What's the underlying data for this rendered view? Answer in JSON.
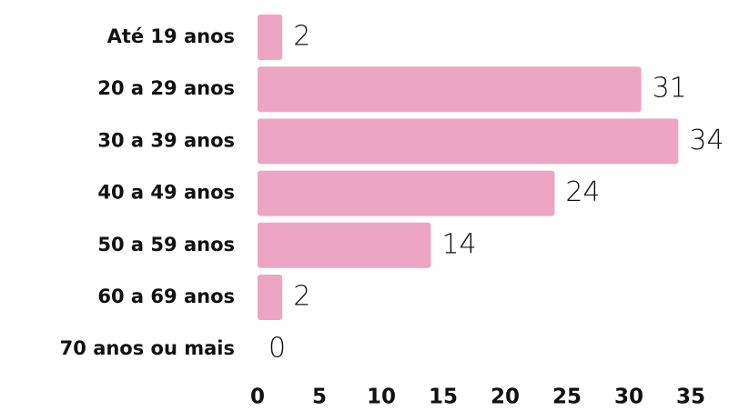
{
  "chart_data": {
    "type": "bar",
    "orientation": "horizontal",
    "categories": [
      "Até 19 anos",
      "20 a 29 anos",
      "30 a 39 anos",
      "40 a 49 anos",
      "50 a 59 anos",
      "60 a 69 anos",
      "70 anos ou mais"
    ],
    "values": [
      2,
      31,
      34,
      24,
      14,
      2,
      0
    ],
    "color": "#eca6c3",
    "xlim": [
      0,
      35
    ],
    "xticks": [
      0,
      5,
      10,
      15,
      20,
      25,
      30,
      35
    ],
    "grid": false
  }
}
